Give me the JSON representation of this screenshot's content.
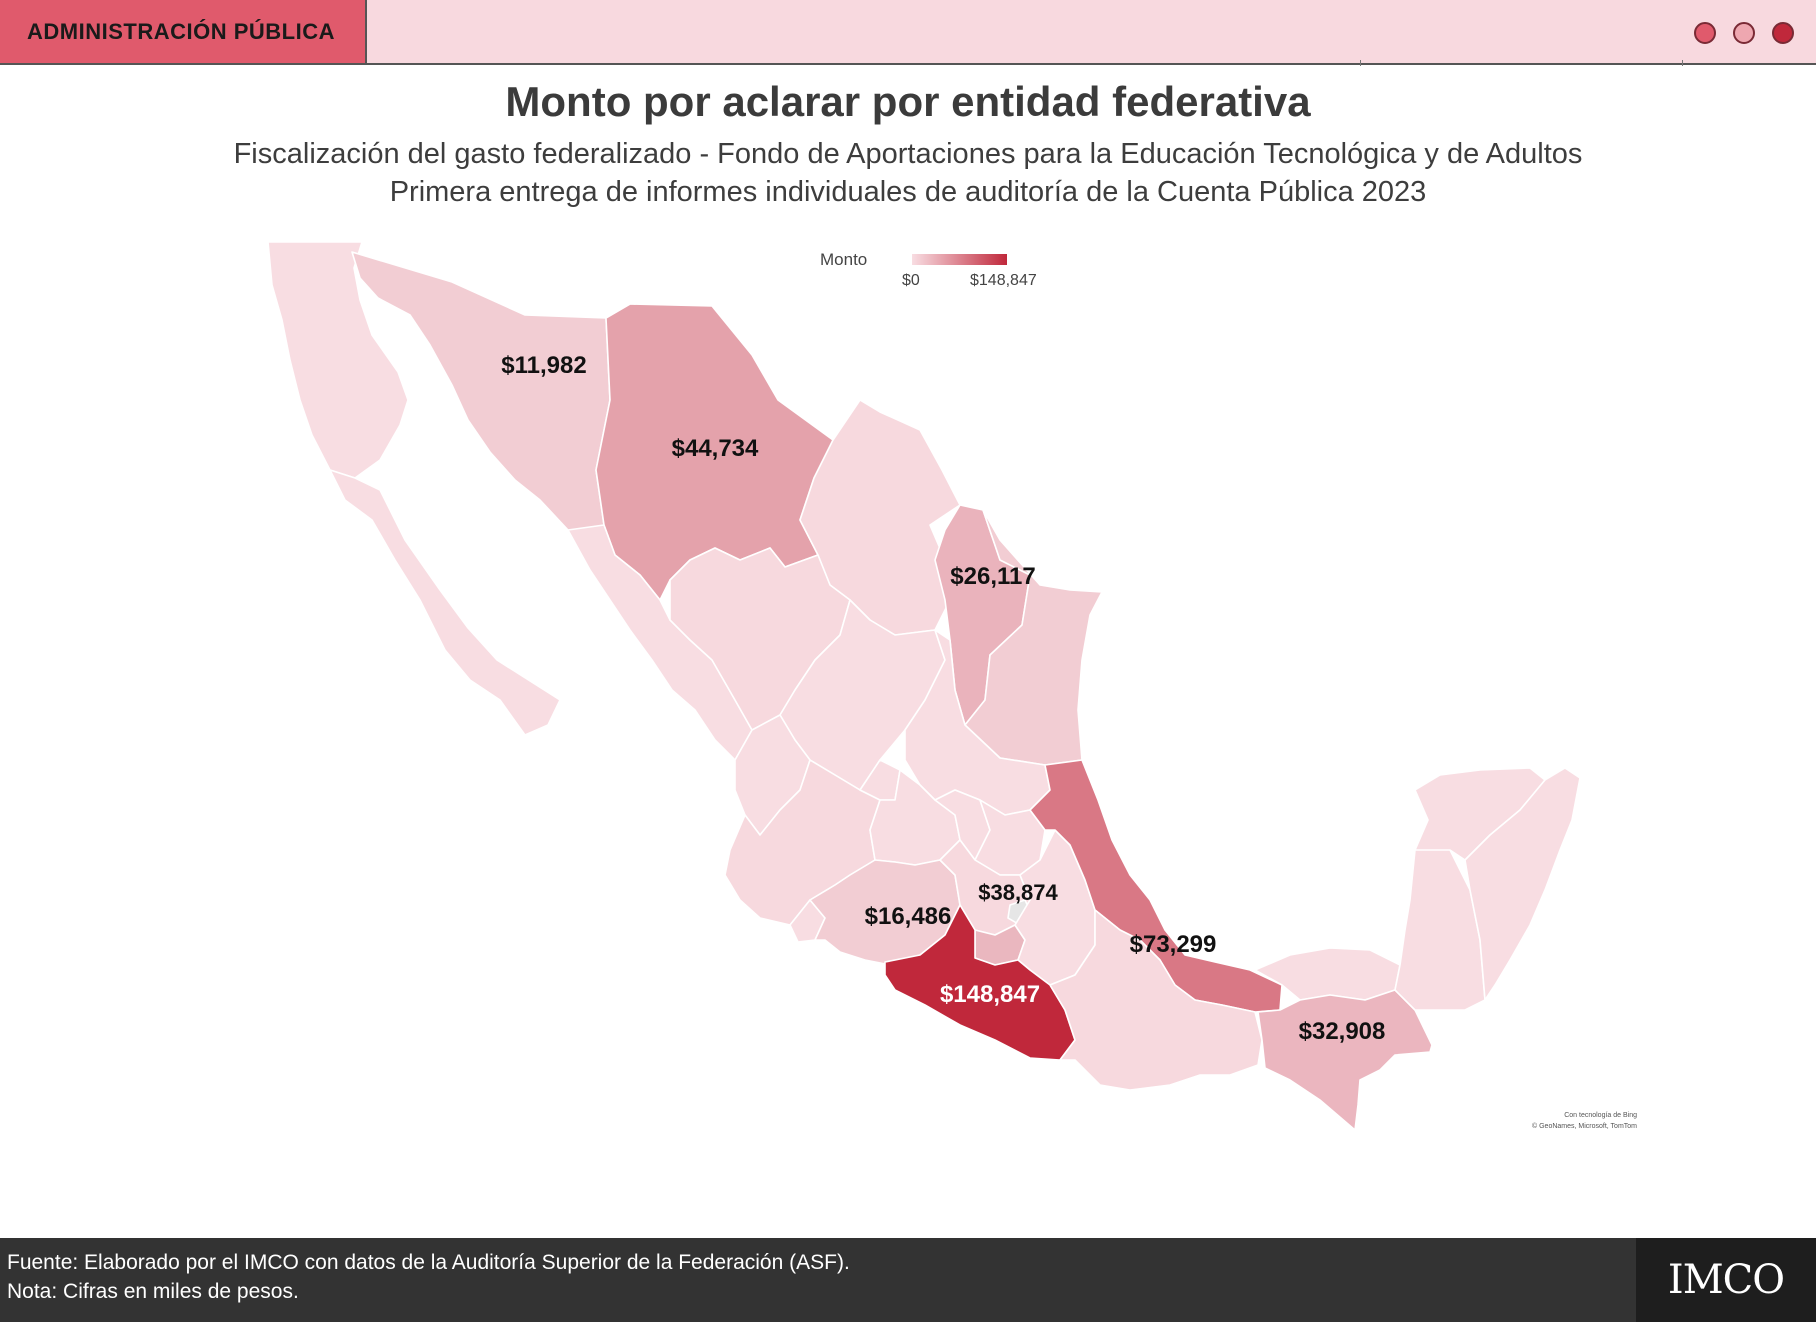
{
  "header": {
    "section_label": "ADMINISTRACIÓN PÚBLICA",
    "dot_colors": [
      "#e05a6c",
      "#eea7b0",
      "#c0283b"
    ]
  },
  "title": "Monto por aclarar por entidad federativa",
  "subtitle_line1": "Fiscalización del gasto federalizado - Fondo de Aportaciones para la Educación Tecnológica y de Adultos",
  "subtitle_line2": "Primera entrega de informes individuales de auditoría de la Cuenta Pública 2023",
  "legend": {
    "title": "Monto",
    "min_label": "$0",
    "max_label": "$148,847",
    "min": 0,
    "max": 148847,
    "color_low": "#f8dde2",
    "color_high": "#c0283b"
  },
  "regions": [
    {
      "state": "Sonora",
      "value": 11982,
      "label": "$11,982"
    },
    {
      "state": "Chihuahua",
      "value": 44734,
      "label": "$44,734"
    },
    {
      "state": "Nuevo León",
      "value": 26117,
      "label": "$26,117"
    },
    {
      "state": "Michoacán",
      "value": 16486,
      "label": "$16,486"
    },
    {
      "state": "Morelos",
      "value": 38874,
      "label": "$38,874"
    },
    {
      "state": "Veracruz",
      "value": 73299,
      "label": "$73,299"
    },
    {
      "state": "Guerrero",
      "value": 148847,
      "label": "$148,847"
    },
    {
      "state": "Chiapas",
      "value": 32908,
      "label": "$32,908"
    }
  ],
  "map_credit_line1": "Con tecnología de Bing",
  "map_credit_line2": "© GeoNames, Microsoft, TomTom",
  "footer": {
    "source": "Fuente: Elaborado por el IMCO con datos de la Auditoría Superior de la Federación (ASF).",
    "note": "Nota: Cifras en miles de pesos.",
    "logo_text": "IMCO"
  }
}
